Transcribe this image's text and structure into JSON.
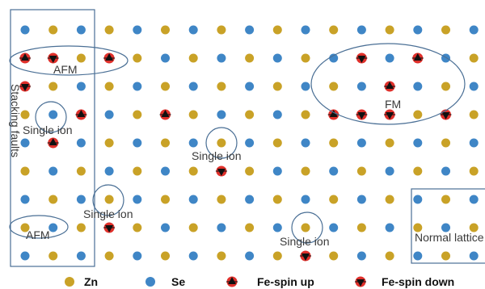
{
  "labels": {
    "afm": "AFM",
    "fm": "FM",
    "single_ion": "Single ion",
    "stacking_faults": "Stacking faults",
    "normal_lattice": "Normal lattice"
  },
  "legend": {
    "zn": "Zn",
    "se": "Se",
    "fe_up": "Fe-spin up",
    "fe_down": "Fe-spin down"
  },
  "colors": {
    "zn": "#c9a227",
    "se": "#3f86c6",
    "fe": "#e0302b",
    "line": "#4a6f95",
    "text": "#3a3a3a"
  },
  "lattice": {
    "columns": 17,
    "rows": 9,
    "fe_up_sites": [
      [
        0,
        1
      ],
      [
        3,
        1
      ],
      [
        1,
        4
      ],
      [
        11,
        3
      ],
      [
        13,
        2
      ],
      [
        14,
        1
      ],
      [
        2,
        3
      ],
      [
        5,
        3
      ]
    ],
    "fe_down_sites": [
      [
        0,
        2
      ],
      [
        1,
        1
      ],
      [
        12,
        1
      ],
      [
        12,
        3
      ],
      [
        13,
        3
      ],
      [
        15,
        3
      ],
      [
        7,
        5
      ],
      [
        10,
        8
      ],
      [
        3,
        7
      ]
    ]
  }
}
